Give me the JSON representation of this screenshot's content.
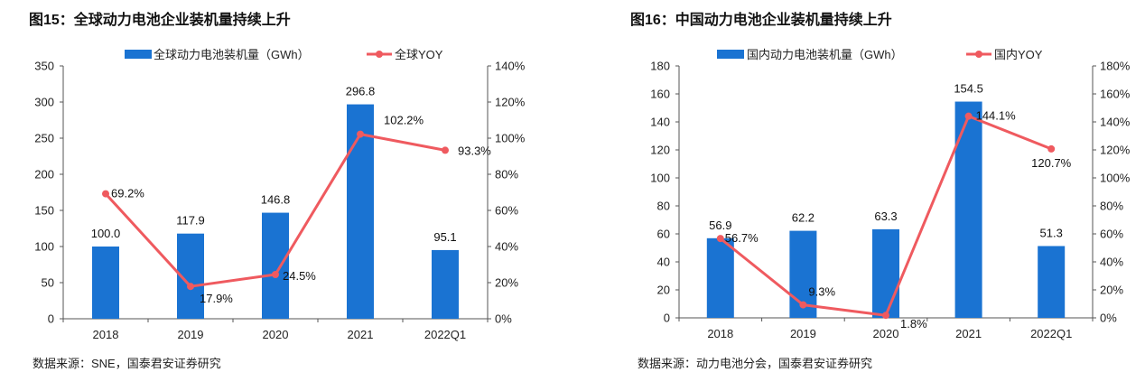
{
  "colors": {
    "bar": "#1a73d2",
    "line": "#ef5a5f"
  },
  "chart_data": [
    {
      "type": "bar+line",
      "title": "图15：全球动力电池企业装机量持续上升",
      "source": "数据来源：SNE，国泰君安证券研究",
      "categories": [
        "2018",
        "2019",
        "2020",
        "2021",
        "2022Q1"
      ],
      "series": [
        {
          "name": "全球动力电池装机量（GWh）",
          "type": "bar",
          "axis": "left",
          "values": [
            100.0,
            117.9,
            146.8,
            296.8,
            95.1
          ],
          "labels": [
            "100.0",
            "117.9",
            "146.8",
            "296.8",
            "95.1"
          ]
        },
        {
          "name": "全球YOY",
          "type": "line",
          "axis": "right",
          "values": [
            69.2,
            17.9,
            24.5,
            102.2,
            93.3
          ],
          "labels": [
            "69.2%",
            "17.9%",
            "24.5%",
            "102.2%",
            "93.3%"
          ]
        }
      ],
      "y_left": {
        "min": 0,
        "max": 350,
        "step": 50,
        "ticks": [
          "0",
          "50",
          "100",
          "150",
          "200",
          "250",
          "300",
          "350"
        ]
      },
      "y_right": {
        "min": 0,
        "max": 140,
        "step": 20,
        "ticks": [
          "0%",
          "20%",
          "40%",
          "60%",
          "80%",
          "100%",
          "120%",
          "140%"
        ]
      },
      "legend_position": "top"
    },
    {
      "type": "bar+line",
      "title": "图16：中国动力电池企业装机量持续上升",
      "source": "数据来源：动力电池分会，国泰君安证券研究",
      "categories": [
        "2018",
        "2019",
        "2020",
        "2021",
        "2022Q1"
      ],
      "series": [
        {
          "name": "国内动力电池装机量（GWh）",
          "type": "bar",
          "axis": "left",
          "values": [
            56.9,
            62.2,
            63.3,
            154.5,
            51.3
          ],
          "labels": [
            "56.9",
            "62.2",
            "63.3",
            "154.5",
            "51.3"
          ]
        },
        {
          "name": "国内YOY",
          "type": "line",
          "axis": "right",
          "values": [
            56.7,
            9.3,
            1.8,
            144.1,
            120.7
          ],
          "labels": [
            "56.7%",
            "9.3%",
            "1.8%",
            "144.1%",
            "120.7%"
          ]
        }
      ],
      "y_left": {
        "min": 0,
        "max": 180,
        "step": 20,
        "ticks": [
          "0",
          "20",
          "40",
          "60",
          "80",
          "100",
          "120",
          "140",
          "160",
          "180"
        ]
      },
      "y_right": {
        "min": 0,
        "max": 180,
        "step": 20,
        "ticks": [
          "0%",
          "20%",
          "40%",
          "60%",
          "80%",
          "100%",
          "120%",
          "140%",
          "160%",
          "180%"
        ]
      },
      "legend_position": "top"
    }
  ]
}
